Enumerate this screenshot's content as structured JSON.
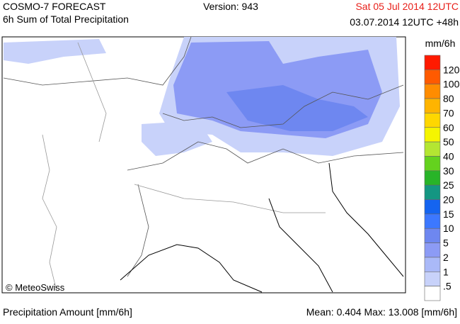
{
  "header": {
    "title": "COSMO-7 FORECAST",
    "subtitle": "6h Sum of Total Precipitation",
    "version": "Version: 943",
    "valid_time": "Sat 05 Jul 2014 12UTC",
    "run_time": "03.07.2014 12UTC +48h"
  },
  "legend": {
    "unit": "mm/6h",
    "labels": [
      "120",
      "100",
      "80",
      "70",
      "60",
      "50",
      "40",
      "30",
      "25",
      "20",
      "15",
      "10",
      "5",
      "2",
      "1",
      ".5"
    ],
    "colors": [
      "#ff1a00",
      "#ff5a00",
      "#ff8c00",
      "#ffb400",
      "#ffd700",
      "#f5f500",
      "#b4e632",
      "#64d21e",
      "#28b428",
      "#149682",
      "#1464f0",
      "#3c78ff",
      "#6e87f0",
      "#8c9bf5",
      "#aab9f8",
      "#c8d2fa",
      "#ffffff"
    ]
  },
  "map": {
    "copyright": "© MeteoSwiss"
  },
  "footer": {
    "left": "Precipitation Amount [mm/6h]",
    "right": "Mean:  0.404 Max:  13.008 [mm/6h]"
  }
}
